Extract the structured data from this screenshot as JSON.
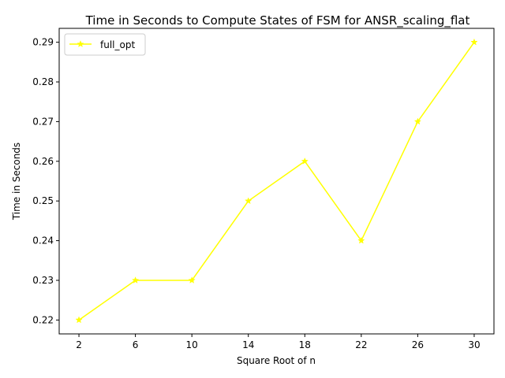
{
  "chart_data": {
    "type": "line",
    "title": "Time in Seconds to Compute States of FSM for ANSR_scaling_flat",
    "xlabel": "Square Root of n",
    "ylabel": "Time in Seconds",
    "x": [
      2,
      6,
      10,
      14,
      18,
      22,
      26,
      30
    ],
    "xticks": [
      "2",
      "6",
      "10",
      "14",
      "18",
      "22",
      "26",
      "30"
    ],
    "yticks": [
      "0.22",
      "0.23",
      "0.24",
      "0.25",
      "0.26",
      "0.27",
      "0.28",
      "0.29"
    ],
    "ytick_values": [
      0.22,
      0.23,
      0.24,
      0.25,
      0.26,
      0.27,
      0.28,
      0.29
    ],
    "xlim": [
      0.6,
      31.4
    ],
    "ylim": [
      0.2165,
      0.2935
    ],
    "grid": false,
    "legend_position": "upper-left",
    "series": [
      {
        "name": "full_opt",
        "values": [
          0.22,
          0.23,
          0.23,
          0.25,
          0.26,
          0.24,
          0.27,
          0.29
        ],
        "color": "#ffff00",
        "marker": "star"
      }
    ]
  }
}
